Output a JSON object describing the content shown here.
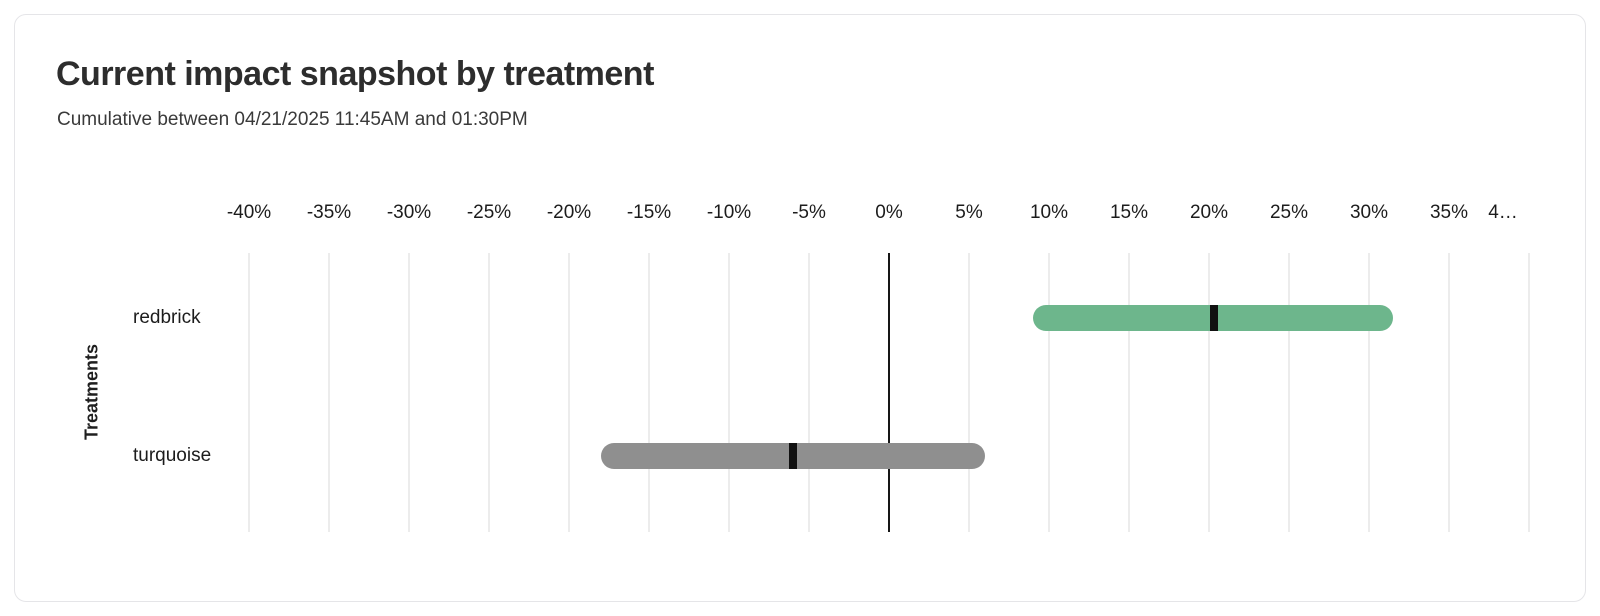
{
  "header": {
    "title": "Current impact snapshot by treatment",
    "subtitle": "Cumulative between 04/21/2025 11:45AM and 01:30PM"
  },
  "chart_data": {
    "type": "bar",
    "variant": "horizontal range bars (confidence intervals) with point-estimate markers",
    "title": "Current impact snapshot by treatment",
    "subtitle": "Cumulative between 04/21/2025 11:45AM and 01:30PM",
    "xlabel": "",
    "ylabel": "Treatments",
    "x_unit": "%",
    "xlim": [
      -40,
      40
    ],
    "x_ticks_percent": [
      -40,
      -35,
      -30,
      -25,
      -20,
      -15,
      -10,
      -5,
      0,
      5,
      10,
      15,
      20,
      25,
      30,
      35,
      40
    ],
    "x_tick_labels": [
      "-40%",
      "-35%",
      "-30%",
      "-25%",
      "-20%",
      "-15%",
      "-10%",
      "-5%",
      "0%",
      "5%",
      "10%",
      "15%",
      "20%",
      "25%",
      "30%",
      "35%",
      "4…"
    ],
    "grid": true,
    "legend": "none",
    "categories": [
      "redbrick",
      "turquoise"
    ],
    "series": [
      {
        "name": "redbrick",
        "range_low_pct": 9,
        "point_pct": 20.3,
        "range_high_pct": 31.5,
        "bar_color": "#6db68c"
      },
      {
        "name": "turquoise",
        "range_low_pct": -18,
        "point_pct": -6,
        "range_high_pct": 6,
        "bar_color": "#8f8f8f"
      }
    ],
    "marker_color": "#111111",
    "zero_line_color": "#161616"
  },
  "colors": {
    "card_border": "#e5e5e8",
    "gridline": "#ececec",
    "title_text": "#2d2d2d",
    "subtitle_text": "#3a3a3a",
    "tick_text": "#1c1c1c"
  }
}
